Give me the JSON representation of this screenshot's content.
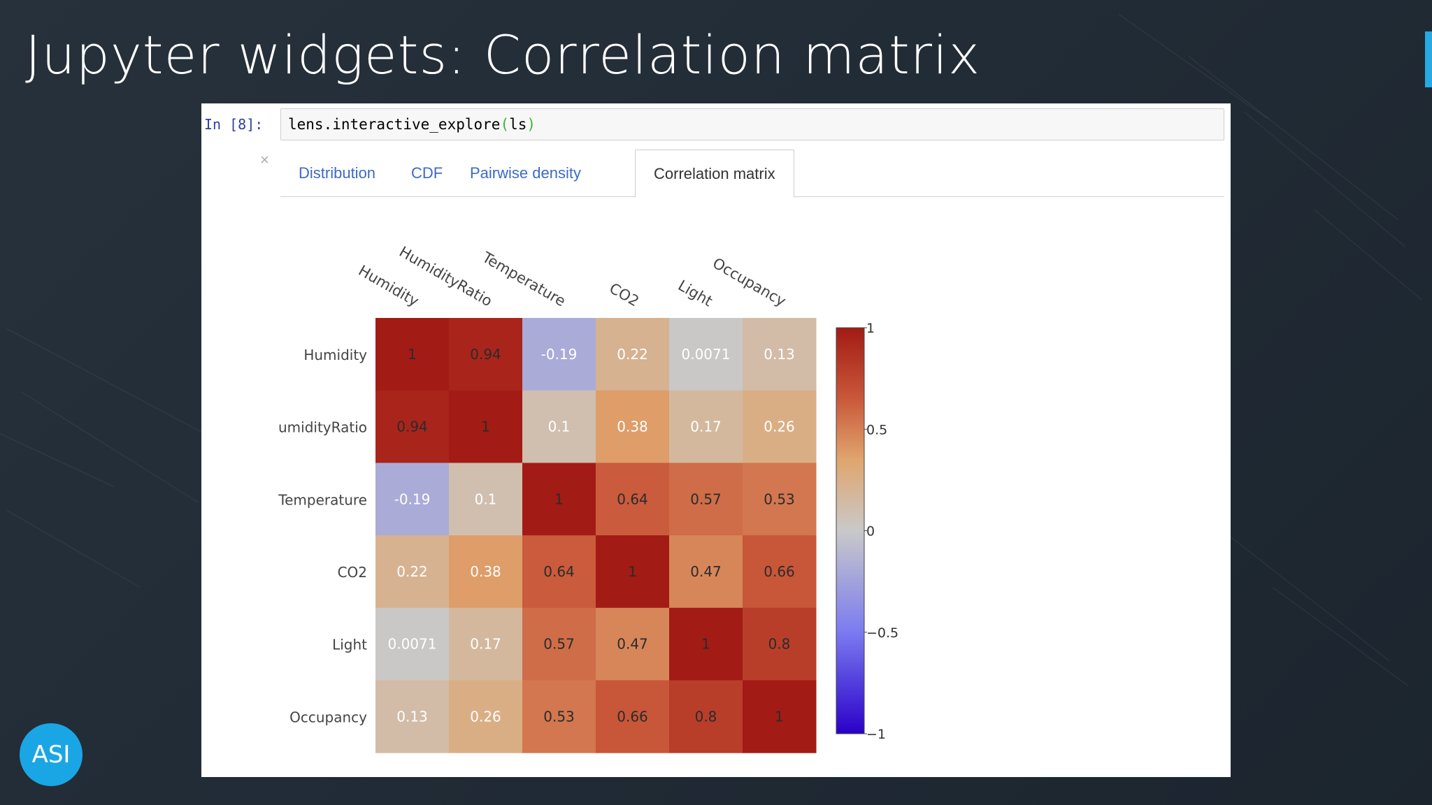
{
  "slide": {
    "title": "Jupyter widgets: Correlation matrix",
    "logo_text": "ASI",
    "accent_color": "#27a9e1"
  },
  "notebook": {
    "prompt": "In [8]:",
    "code_prefix": "lens.interactive_explore",
    "code_open_paren": "(",
    "code_arg": "ls",
    "code_close_paren": ")",
    "close_glyph": "×",
    "tabs": [
      {
        "label": "Distribution",
        "active": false
      },
      {
        "label": "CDF",
        "active": false
      },
      {
        "label": "Pairwise density",
        "active": false
      },
      {
        "label": "Correlation matrix",
        "active": true
      }
    ]
  },
  "chart_data": {
    "type": "heatmap",
    "columns": [
      "Humidity",
      "HumidityRatio",
      "Temperature",
      "CO2",
      "Light",
      "Occupancy"
    ],
    "rows": [
      "Humidity",
      "umidityRatio",
      "Temperature",
      "CO2",
      "Light",
      "Occupancy"
    ],
    "values": [
      [
        1,
        0.94,
        -0.19,
        0.22,
        0.0071,
        0.13
      ],
      [
        0.94,
        1,
        0.1,
        0.38,
        0.17,
        0.26
      ],
      [
        -0.19,
        0.1,
        1,
        0.64,
        0.57,
        0.53
      ],
      [
        0.22,
        0.38,
        0.64,
        1,
        0.47,
        0.66
      ],
      [
        0.0071,
        0.17,
        0.57,
        0.47,
        1,
        0.8
      ],
      [
        0.13,
        0.26,
        0.53,
        0.66,
        0.8,
        1
      ]
    ],
    "labels": [
      [
        "1",
        "0.94",
        "-0.19",
        "0.22",
        "0.0071",
        "0.13"
      ],
      [
        "0.94",
        "1",
        "0.1",
        "0.38",
        "0.17",
        "0.26"
      ],
      [
        "-0.19",
        "0.1",
        "1",
        "0.64",
        "0.57",
        "0.53"
      ],
      [
        "0.22",
        "0.38",
        "0.64",
        "1",
        "0.47",
        "0.66"
      ],
      [
        "0.0071",
        "0.17",
        "0.57",
        "0.47",
        "1",
        "0.8"
      ],
      [
        "0.13",
        "0.26",
        "0.53",
        "0.66",
        "0.8",
        "1"
      ]
    ],
    "zlim": [
      -1,
      1
    ],
    "colorbar_ticks": [
      {
        "value": 1,
        "label": "1"
      },
      {
        "value": 0.5,
        "label": "0.5"
      },
      {
        "value": 0,
        "label": "0"
      },
      {
        "value": -0.5,
        "label": "−0.5"
      },
      {
        "value": -1,
        "label": "−1"
      }
    ],
    "colorscale": [
      [
        -1,
        "#2a00c8"
      ],
      [
        -0.5,
        "#7b7bf0"
      ],
      [
        0,
        "#c9c9c9"
      ],
      [
        0.35,
        "#e0a56e"
      ],
      [
        0.65,
        "#c9583a"
      ],
      [
        1,
        "#a21b15"
      ]
    ]
  }
}
